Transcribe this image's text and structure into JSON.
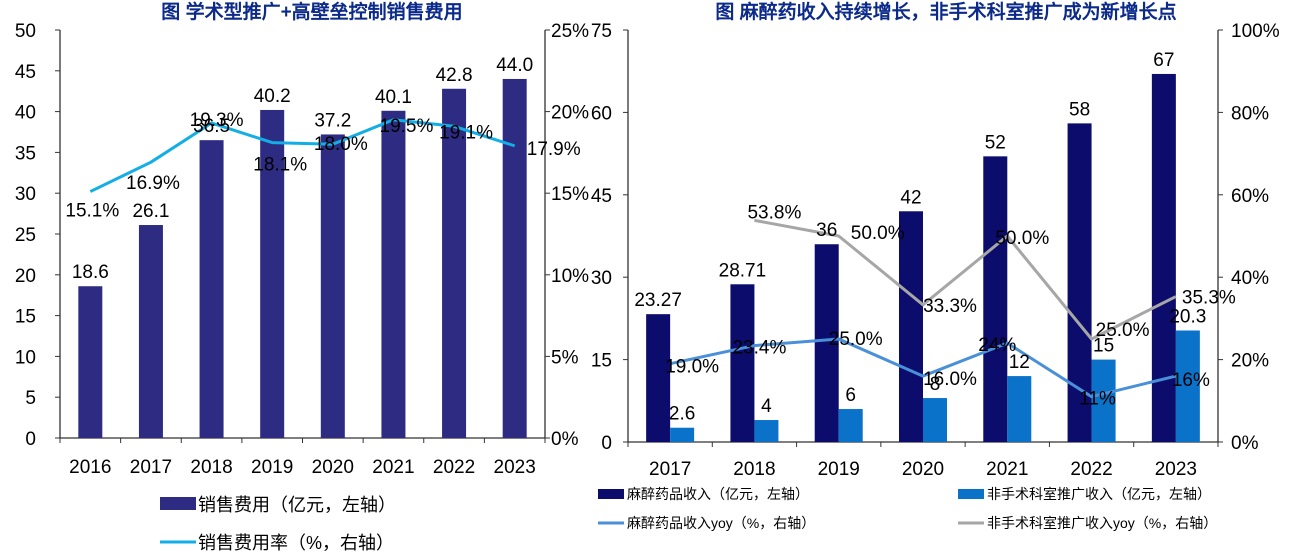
{
  "left_chart": {
    "title": "图 学术型推广+高壁垒控制销售费用",
    "colors": {
      "bar": "#2e2c82",
      "line": "#13aee6"
    },
    "legend": {
      "bar": "销售费用（亿元，左轴）",
      "line": "销售费用率（%，右轴）"
    }
  },
  "right_chart": {
    "title": "图 麻醉药收入持续增长，非手术科室推广成为新增长点",
    "colors": {
      "bar1": "#0b0c6b",
      "bar2": "#0a73c9",
      "line1": "#4a90d9",
      "line2": "#a6a6a6"
    },
    "legend": {
      "bar1": "麻醉药品收入（亿元，左轴）",
      "bar2": "非手术科室推广收入（亿元，左轴）",
      "line1": "麻醉药品收入yoy（%，右轴）",
      "line2": "非手术科室推广收入yoy（%，右轴）"
    }
  },
  "chart_data": [
    {
      "type": "bar",
      "title": "图 学术型推广+高壁垒控制销售费用",
      "categories": [
        "2016",
        "2017",
        "2018",
        "2019",
        "2020",
        "2021",
        "2022",
        "2023"
      ],
      "series": [
        {
          "name": "销售费用（亿元，左轴）",
          "type": "bar",
          "axis": "left",
          "values": [
            18.6,
            26.1,
            36.5,
            40.2,
            37.2,
            40.1,
            42.8,
            44.0
          ],
          "labels": [
            "18.6",
            "26.1",
            "36.5",
            "40.2",
            "37.2",
            "40.1",
            "42.8",
            "44.0"
          ]
        },
        {
          "name": "销售费用率（%，右轴）",
          "type": "line",
          "axis": "right",
          "values": [
            15.1,
            16.9,
            19.3,
            18.1,
            18.0,
            19.5,
            19.1,
            17.9
          ],
          "labels": [
            "15.1%",
            "16.9%",
            "19.3%",
            "18.1%",
            "18.0%",
            "19.5%",
            "19.1%",
            "17.9%"
          ]
        }
      ],
      "y_left": {
        "min": 0,
        "max": 50,
        "ticks": [
          "0",
          "5",
          "10",
          "15",
          "20",
          "25",
          "30",
          "35",
          "40",
          "45",
          "50"
        ]
      },
      "y_right": {
        "min": 0,
        "max": 25,
        "ticks": [
          "0%",
          "5%",
          "10%",
          "15%",
          "20%",
          "25%"
        ]
      },
      "grid": false,
      "legend_position": "bottom"
    },
    {
      "type": "bar",
      "title": "图 麻醉药收入持续增长，非手术科室推广成为新增长点",
      "categories": [
        "2017",
        "2018",
        "2019",
        "2020",
        "2021",
        "2022",
        "2023"
      ],
      "series": [
        {
          "name": "麻醉药品收入（亿元，左轴）",
          "type": "bar",
          "axis": "left",
          "values": [
            23.27,
            28.71,
            36,
            42,
            52,
            58,
            67
          ],
          "labels": [
            "23.27",
            "28.71",
            "36",
            "42",
            "52",
            "58",
            "67"
          ]
        },
        {
          "name": "非手术科室推广收入（亿元，左轴）",
          "type": "bar",
          "axis": "left",
          "values": [
            2.6,
            4,
            6,
            8,
            12,
            15,
            20.3
          ],
          "labels": [
            "2.6",
            "4",
            "6",
            "8",
            "12",
            "15",
            "20.3"
          ]
        },
        {
          "name": "麻醉药品收入yoy（%，右轴）",
          "type": "line",
          "axis": "right",
          "values": [
            19.0,
            23.4,
            25.0,
            16.0,
            24,
            11,
            16
          ],
          "labels": [
            "19.0%",
            "23.4%",
            "25.0%",
            "16.0%",
            "24%",
            "11%",
            "16%"
          ]
        },
        {
          "name": "非手术科室推广收入yoy（%，右轴）",
          "type": "line",
          "axis": "right",
          "values": [
            null,
            53.8,
            50.0,
            33.3,
            50.0,
            25.0,
            35.3
          ],
          "labels": [
            "",
            "53.8%",
            "50.0%",
            "33.3%",
            "50.0%",
            "25.0%",
            "35.3%"
          ]
        }
      ],
      "y_left": {
        "min": 0,
        "max": 75,
        "ticks": [
          "0",
          "15",
          "30",
          "45",
          "60",
          "75"
        ]
      },
      "y_right": {
        "min": 0,
        "max": 100,
        "ticks": [
          "0%",
          "20%",
          "40%",
          "60%",
          "80%",
          "100%"
        ]
      },
      "grid": false,
      "legend_position": "bottom"
    }
  ]
}
